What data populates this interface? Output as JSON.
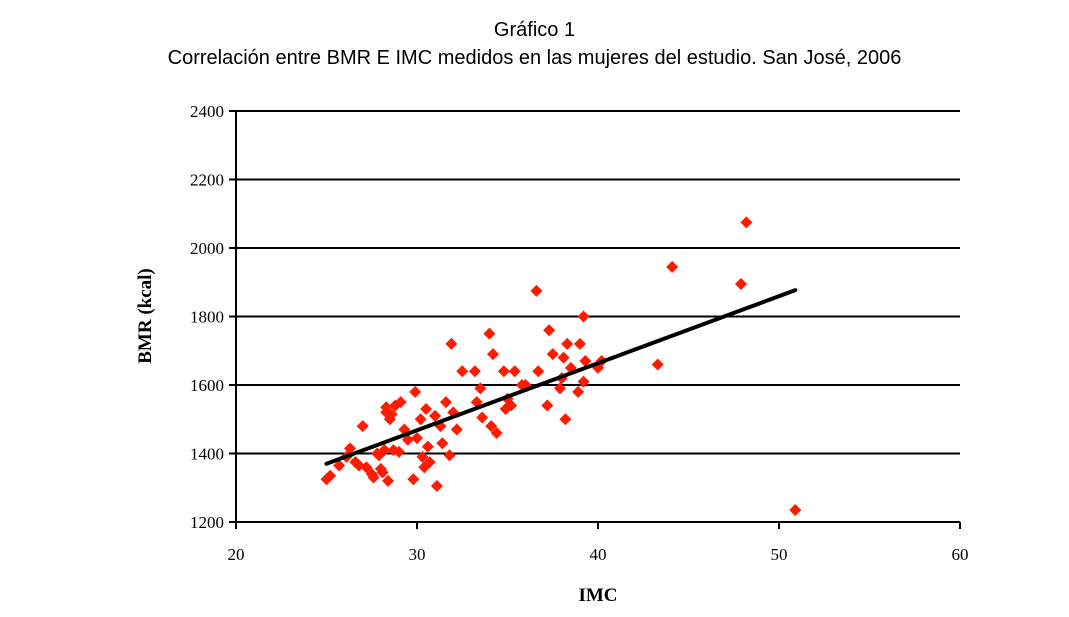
{
  "chart_data": {
    "type": "scatter",
    "title": "Gráfico 1",
    "subtitle": "Correlación entre BMR E IMC medidos en las mujeres del estudio. San José, 2006",
    "xlabel": "IMC",
    "ylabel": "BMR (kcal)",
    "xlim": [
      20,
      60
    ],
    "ylim": [
      1200,
      2400
    ],
    "xticks": [
      "20",
      "30",
      "40",
      "50",
      "60"
    ],
    "yticks": [
      "1200",
      "1400",
      "1600",
      "1800",
      "2000",
      "2200",
      "2400"
    ],
    "grid": "horizontal",
    "legend": "none",
    "marker_color": "#ff1a00",
    "trendline_color": "#000000",
    "trendline": {
      "x": [
        25.0,
        50.9
      ],
      "y": [
        1370,
        1877
      ]
    },
    "series": [
      {
        "marker": "diamond",
        "points": [
          [
            25.0,
            1325
          ],
          [
            25.2,
            1335
          ],
          [
            25.7,
            1365
          ],
          [
            26.1,
            1390
          ],
          [
            26.3,
            1415
          ],
          [
            26.6,
            1375
          ],
          [
            26.8,
            1365
          ],
          [
            27.0,
            1480
          ],
          [
            27.2,
            1360
          ],
          [
            27.5,
            1340
          ],
          [
            27.6,
            1330
          ],
          [
            27.8,
            1400
          ],
          [
            27.9,
            1395
          ],
          [
            28.0,
            1355
          ],
          [
            28.1,
            1345
          ],
          [
            28.2,
            1410
          ],
          [
            28.3,
            1520
          ],
          [
            28.3,
            1535
          ],
          [
            28.4,
            1320
          ],
          [
            28.5,
            1500
          ],
          [
            28.6,
            1515
          ],
          [
            28.7,
            1410
          ],
          [
            28.8,
            1540
          ],
          [
            29.0,
            1405
          ],
          [
            29.1,
            1550
          ],
          [
            29.3,
            1470
          ],
          [
            29.5,
            1440
          ],
          [
            29.8,
            1325
          ],
          [
            29.9,
            1580
          ],
          [
            30.0,
            1445
          ],
          [
            30.2,
            1500
          ],
          [
            30.3,
            1390
          ],
          [
            30.4,
            1360
          ],
          [
            30.5,
            1530
          ],
          [
            30.6,
            1420
          ],
          [
            30.7,
            1375
          ],
          [
            31.0,
            1510
          ],
          [
            31.1,
            1305
          ],
          [
            31.3,
            1480
          ],
          [
            31.4,
            1430
          ],
          [
            31.6,
            1550
          ],
          [
            31.8,
            1395
          ],
          [
            31.9,
            1720
          ],
          [
            32.0,
            1520
          ],
          [
            32.2,
            1470
          ],
          [
            32.5,
            1640
          ],
          [
            33.2,
            1640
          ],
          [
            33.3,
            1550
          ],
          [
            33.5,
            1590
          ],
          [
            33.6,
            1505
          ],
          [
            34.0,
            1750
          ],
          [
            34.1,
            1480
          ],
          [
            34.2,
            1690
          ],
          [
            34.4,
            1460
          ],
          [
            34.8,
            1640
          ],
          [
            34.9,
            1530
          ],
          [
            35.0,
            1560
          ],
          [
            35.2,
            1540
          ],
          [
            35.4,
            1640
          ],
          [
            35.8,
            1600
          ],
          [
            36.0,
            1600
          ],
          [
            36.6,
            1875
          ],
          [
            36.7,
            1640
          ],
          [
            37.2,
            1540
          ],
          [
            37.3,
            1760
          ],
          [
            37.5,
            1690
          ],
          [
            37.9,
            1590
          ],
          [
            38.0,
            1620
          ],
          [
            38.1,
            1680
          ],
          [
            38.2,
            1500
          ],
          [
            38.3,
            1720
          ],
          [
            38.5,
            1650
          ],
          [
            38.9,
            1580
          ],
          [
            39.0,
            1720
          ],
          [
            39.2,
            1800
          ],
          [
            39.2,
            1610
          ],
          [
            39.3,
            1670
          ],
          [
            40.0,
            1650
          ],
          [
            40.2,
            1670
          ],
          [
            43.3,
            1660
          ],
          [
            44.1,
            1945
          ],
          [
            47.9,
            1895
          ],
          [
            48.2,
            2075
          ],
          [
            50.9,
            1235
          ]
        ]
      }
    ]
  }
}
